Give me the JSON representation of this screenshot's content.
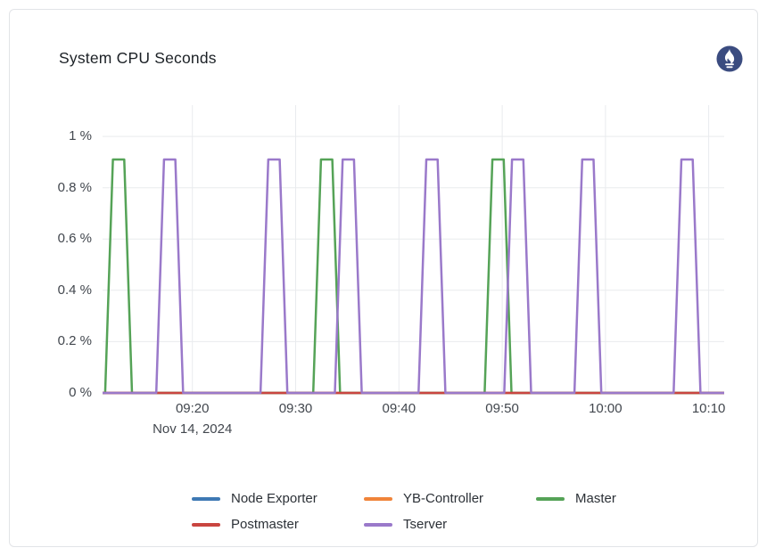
{
  "card": {
    "title": "System CPU Seconds",
    "logo": "prometheus-icon",
    "logo_color": "#3b4c80",
    "border_color": "#e2e4e7"
  },
  "chart_data": {
    "type": "line",
    "title": "System CPU Seconds",
    "grid": true,
    "legend_position": "bottom-center",
    "x_axis": {
      "unit": "time HH:MM",
      "date_label": "Nov 14, 2024",
      "range_minutes_after_0900": [
        11.3,
        71.5
      ],
      "ticks": [
        {
          "m": 20,
          "label": "09:20",
          "sublabel": "Nov 14, 2024"
        },
        {
          "m": 30,
          "label": "09:30"
        },
        {
          "m": 40,
          "label": "09:40"
        },
        {
          "m": 50,
          "label": "09:50"
        },
        {
          "m": 60,
          "label": "10:00"
        },
        {
          "m": 70,
          "label": "10:10"
        }
      ]
    },
    "y_axis": {
      "unit": "%",
      "range": [
        0,
        1.122
      ],
      "ticks": [
        {
          "v": 0,
          "label": "0 %"
        },
        {
          "v": 0.2,
          "label": "0.2 %"
        },
        {
          "v": 0.4,
          "label": "0.4 %"
        },
        {
          "v": 0.6,
          "label": "0.6 %"
        },
        {
          "v": 0.8,
          "label": "0.8 %"
        },
        {
          "v": 1,
          "label": "1 %"
        }
      ]
    },
    "pulse_shape": {
      "half_base_min": 1.3,
      "half_top_min": 0.55
    },
    "series": [
      {
        "name": "Node Exporter",
        "color": "#3e79b4",
        "shape": "flat",
        "value": 0
      },
      {
        "name": "YB-Controller",
        "color": "#f0843a",
        "shape": "flat",
        "value": 0
      },
      {
        "name": "Master",
        "color": "#55a357",
        "shape": "pulses",
        "peak_percent": 0.91,
        "pulse_centers_min_after_0900": [
          12.85,
          33.0,
          49.6
        ]
      },
      {
        "name": "Postmaster",
        "color": "#c94540",
        "shape": "flat",
        "value": 0
      },
      {
        "name": "Tserver",
        "color": "#9a79ca",
        "shape": "pulses",
        "peak_percent": 0.91,
        "pulse_centers_min_after_0900": [
          17.8,
          27.9,
          35.1,
          43.2,
          51.5,
          58.3,
          67.9
        ]
      }
    ],
    "gridline_color": "#e9ebee",
    "line_width": 2.5
  }
}
